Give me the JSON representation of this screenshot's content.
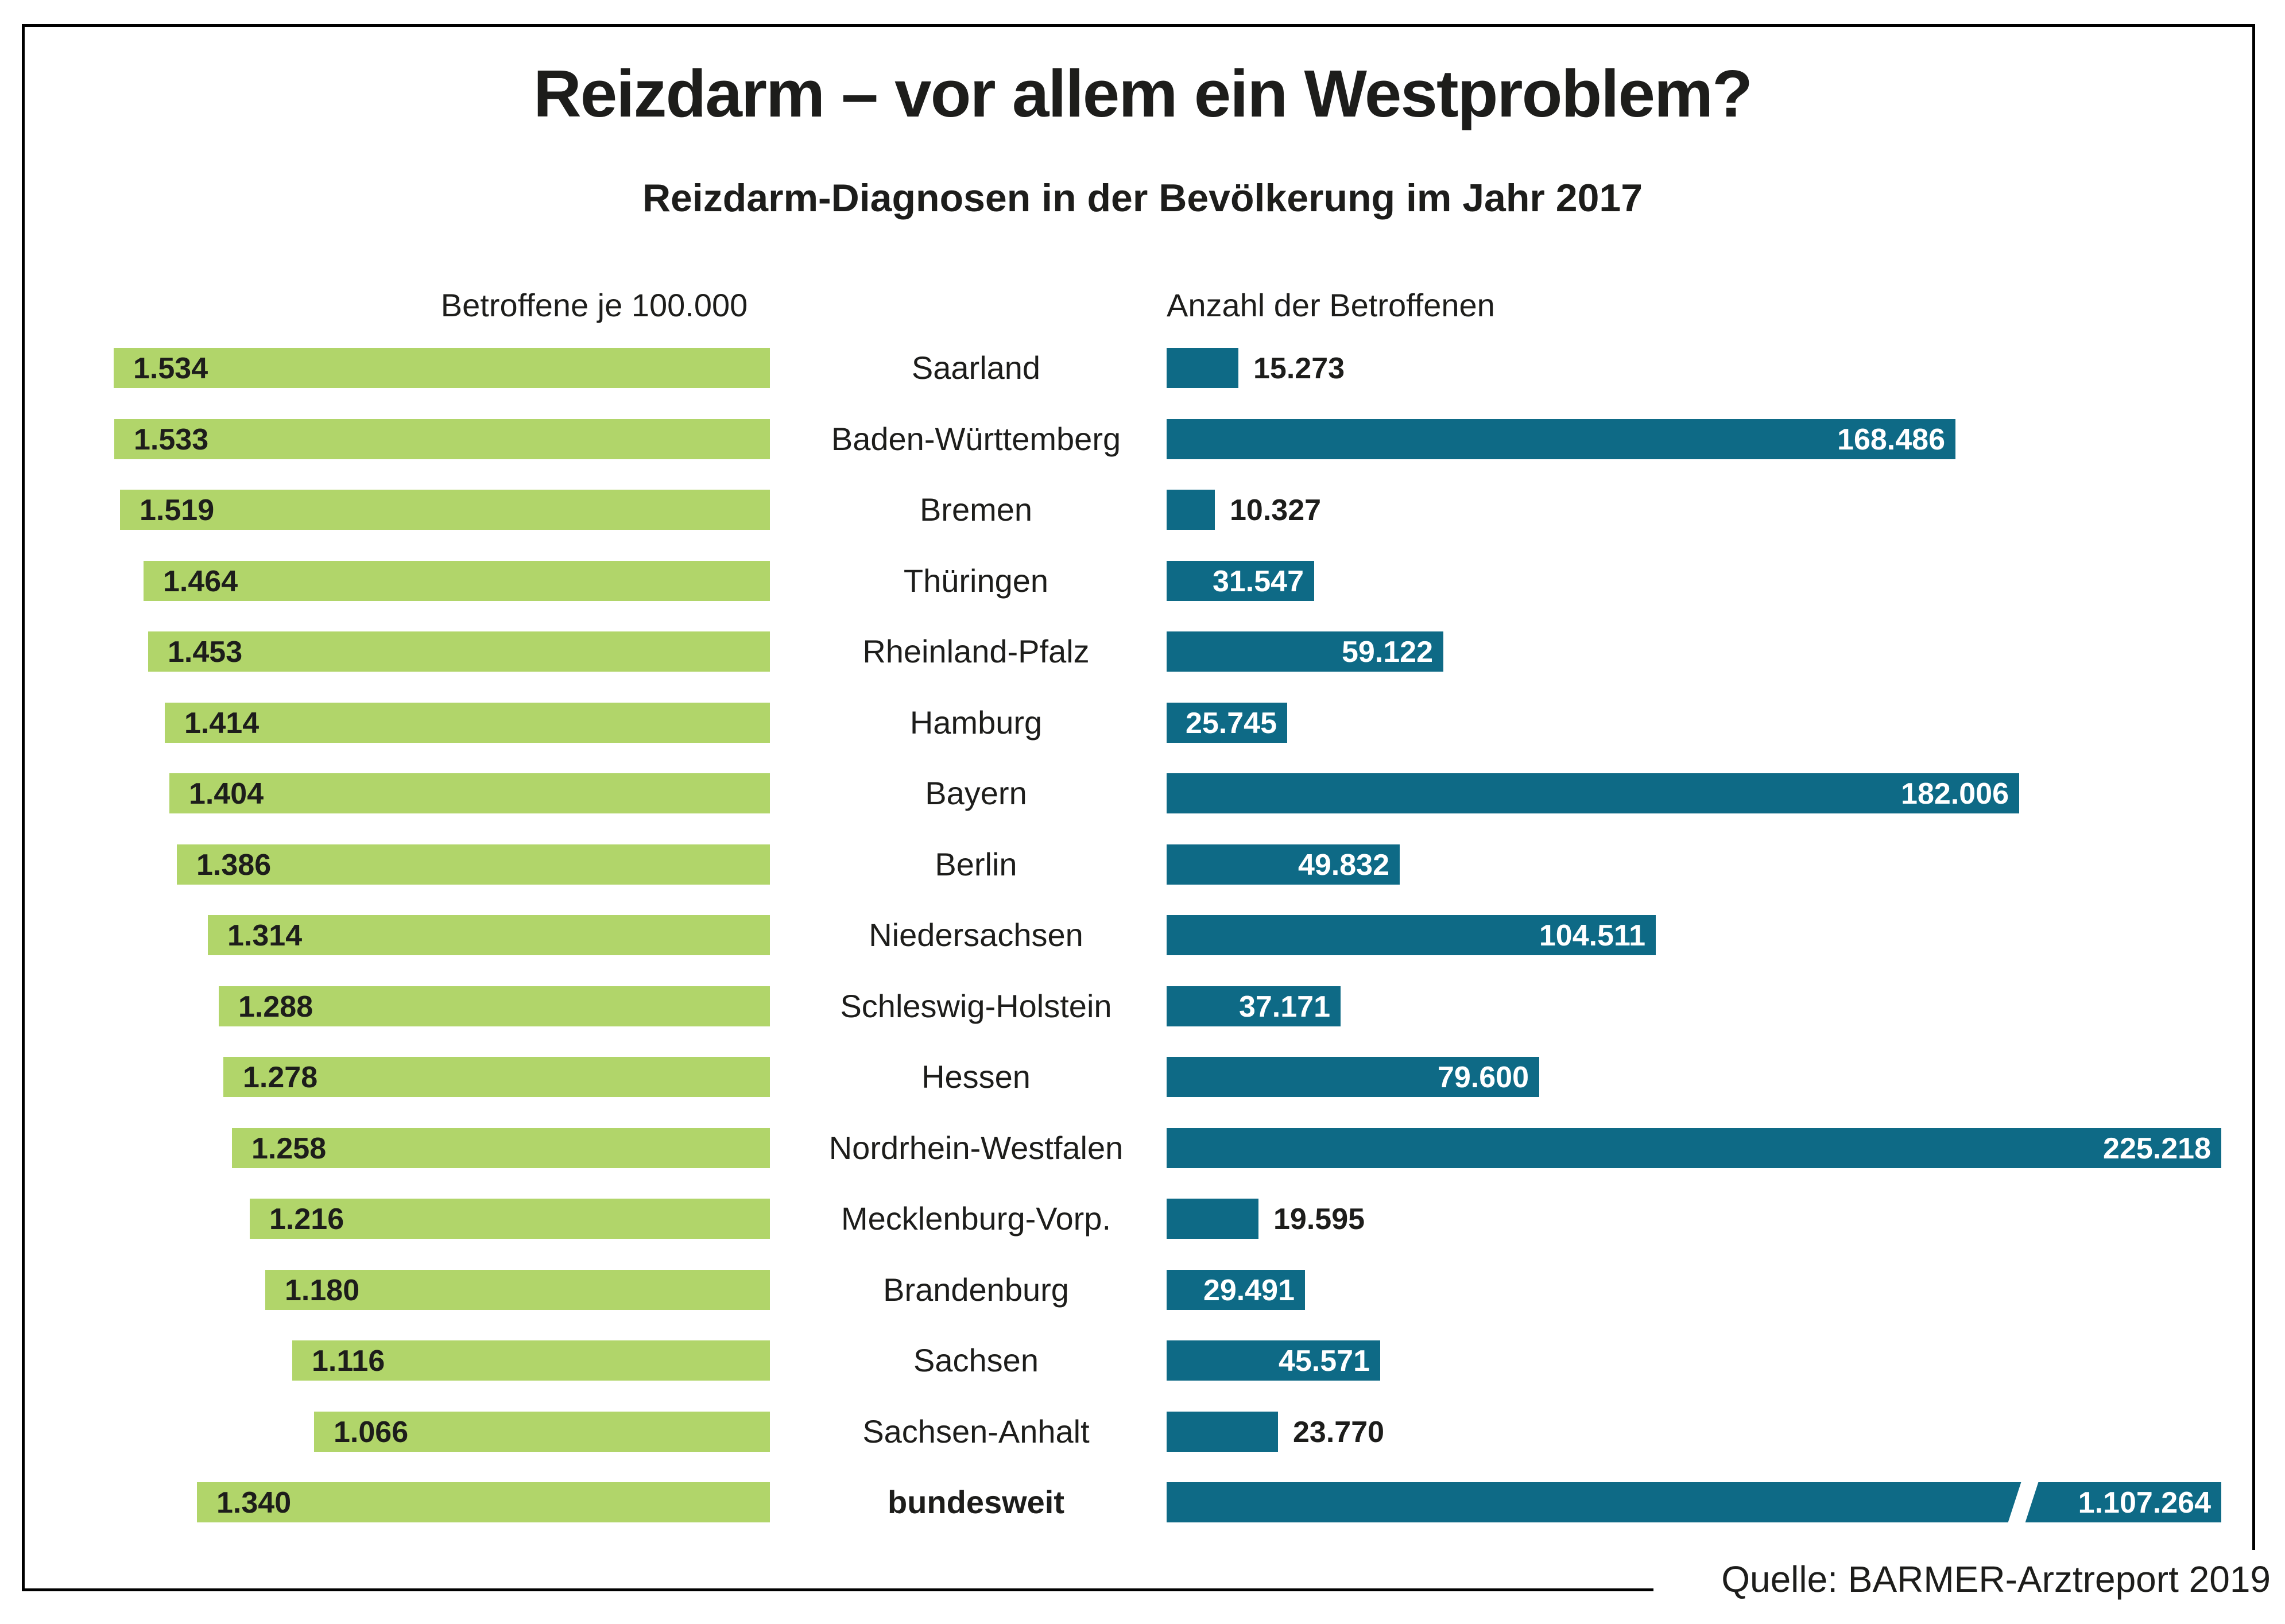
{
  "title": "Reizdarm – vor allem ein Westproblem?",
  "subtitle": "Reizdarm-Diagnosen in der Bevölkerung im Jahr 2017",
  "source": "Quelle: BARMER-Arztreport 2019",
  "colors": {
    "green_bar": "#b1d56a",
    "teal_bar": "#0e6a86",
    "text": "#1d1d1b",
    "inside_bar_label": "#ffffff",
    "border": "#000000",
    "background": "#ffffff"
  },
  "chart_data": {
    "type": "bar",
    "orientation": "horizontal",
    "title": "Reizdarm – vor allem ein Westproblem?",
    "subtitle": "Reizdarm-Diagnosen in der Bevölkerung im Jahr 2017",
    "left_column_header": "Betroffene je 100.000",
    "right_column_header": "Anzahl der Betroffenen",
    "source": "Quelle: BARMER-Arztreport 2019",
    "legend_position": "none",
    "grid": false,
    "categories": [
      "Saarland",
      "Baden-Württemberg",
      "Bremen",
      "Thüringen",
      "Rheinland-Pfalz",
      "Hamburg",
      "Bayern",
      "Berlin",
      "Niedersachsen",
      "Schleswig-Holstein",
      "Hessen",
      "Nordrhein-Westfalen",
      "Mecklenburg-Vorp.",
      "Brandenburg",
      "Sachsen",
      "Sachsen-Anhalt",
      "bundesweit"
    ],
    "series": [
      {
        "name": "Betroffene je 100.000",
        "values": [
          1534,
          1533,
          1519,
          1464,
          1453,
          1414,
          1404,
          1386,
          1314,
          1288,
          1278,
          1258,
          1216,
          1180,
          1116,
          1066,
          1340
        ]
      },
      {
        "name": "Anzahl der Betroffenen",
        "values": [
          15273,
          168486,
          10327,
          31547,
          59122,
          25745,
          182006,
          49832,
          104511,
          37171,
          79600,
          225218,
          19595,
          29491,
          45571,
          23770,
          1107264
        ]
      }
    ],
    "rows": [
      {
        "label": "Saarland",
        "per_100k": 1534,
        "per_100k_label": "1.534",
        "total": 15273,
        "total_label": "15.273",
        "total_label_position": "outside",
        "bold": false,
        "clipped": false
      },
      {
        "label": "Baden-Württemberg",
        "per_100k": 1533,
        "per_100k_label": "1.533",
        "total": 168486,
        "total_label": "168.486",
        "total_label_position": "inside",
        "bold": false,
        "clipped": false
      },
      {
        "label": "Bremen",
        "per_100k": 1519,
        "per_100k_label": "1.519",
        "total": 10327,
        "total_label": "10.327",
        "total_label_position": "outside",
        "bold": false,
        "clipped": false
      },
      {
        "label": "Thüringen",
        "per_100k": 1464,
        "per_100k_label": "1.464",
        "total": 31547,
        "total_label": "31.547",
        "total_label_position": "inside",
        "bold": false,
        "clipped": false
      },
      {
        "label": "Rheinland-Pfalz",
        "per_100k": 1453,
        "per_100k_label": "1.453",
        "total": 59122,
        "total_label": "59.122",
        "total_label_position": "inside",
        "bold": false,
        "clipped": false
      },
      {
        "label": "Hamburg",
        "per_100k": 1414,
        "per_100k_label": "1.414",
        "total": 25745,
        "total_label": "25.745",
        "total_label_position": "inside",
        "bold": false,
        "clipped": false
      },
      {
        "label": "Bayern",
        "per_100k": 1404,
        "per_100k_label": "1.404",
        "total": 182006,
        "total_label": "182.006",
        "total_label_position": "inside",
        "bold": false,
        "clipped": false
      },
      {
        "label": "Berlin",
        "per_100k": 1386,
        "per_100k_label": "1.386",
        "total": 49832,
        "total_label": "49.832",
        "total_label_position": "inside",
        "bold": false,
        "clipped": false
      },
      {
        "label": "Niedersachsen",
        "per_100k": 1314,
        "per_100k_label": "1.314",
        "total": 104511,
        "total_label": "104.511",
        "total_label_position": "inside",
        "bold": false,
        "clipped": false
      },
      {
        "label": "Schleswig-Holstein",
        "per_100k": 1288,
        "per_100k_label": "1.288",
        "total": 37171,
        "total_label": "37.171",
        "total_label_position": "inside",
        "bold": false,
        "clipped": false
      },
      {
        "label": "Hessen",
        "per_100k": 1278,
        "per_100k_label": "1.278",
        "total": 79600,
        "total_label": "79.600",
        "total_label_position": "inside",
        "bold": false,
        "clipped": false
      },
      {
        "label": "Nordrhein-Westfalen",
        "per_100k": 1258,
        "per_100k_label": "1.258",
        "total": 225218,
        "total_label": "225.218",
        "total_label_position": "inside",
        "bold": false,
        "clipped": false
      },
      {
        "label": "Mecklenburg-Vorp.",
        "per_100k": 1216,
        "per_100k_label": "1.216",
        "total": 19595,
        "total_label": "19.595",
        "total_label_position": "outside",
        "bold": false,
        "clipped": false
      },
      {
        "label": "Brandenburg",
        "per_100k": 1180,
        "per_100k_label": "1.180",
        "total": 29491,
        "total_label": "29.491",
        "total_label_position": "inside",
        "bold": false,
        "clipped": false
      },
      {
        "label": "Sachsen",
        "per_100k": 1116,
        "per_100k_label": "1.116",
        "total": 45571,
        "total_label": "45.571",
        "total_label_position": "inside",
        "bold": false,
        "clipped": false
      },
      {
        "label": "Sachsen-Anhalt",
        "per_100k": 1066,
        "per_100k_label": "1.066",
        "total": 23770,
        "total_label": "23.770",
        "total_label_position": "outside",
        "bold": false,
        "clipped": false
      },
      {
        "label": "bundesweit",
        "per_100k": 1340,
        "per_100k_label": "1.340",
        "total": 1107264,
        "total_label": "1.107.264",
        "total_label_position": "inside",
        "bold": true,
        "clipped": true
      }
    ]
  }
}
